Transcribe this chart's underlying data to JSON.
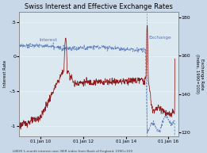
{
  "title": "Swiss Interest and Effective Exchange Rates",
  "footnote": "LIBOR 1-month interest rate; BER index from Bank of England, 1990=100",
  "background_color": "#c8d8e8",
  "plot_bg_color": "#dce8f0",
  "left_ylabel": "Interest Rate",
  "right_ylabel": "Exchange Rate",
  "left_ylim": [
    -1.15,
    0.65
  ],
  "right_ylim": [
    118,
    183
  ],
  "left_yticks": [
    -1,
    -0.5,
    0,
    0.5
  ],
  "left_yticklabels": [
    "-1",
    "-.5",
    "0",
    ".5"
  ],
  "right_yticks": [
    120,
    140,
    160,
    180
  ],
  "xtick_labels": [
    "01 Jan 10",
    "01 Jan 12",
    "01 Jan 14",
    "01 Jan 16"
  ],
  "interest_color": "#8b1010",
  "exchange_color": "#5577bb",
  "interest_label": "Interest",
  "exchange_label": "Exchange",
  "vline_color": "#5577bb",
  "grid_color": "#ffffff"
}
